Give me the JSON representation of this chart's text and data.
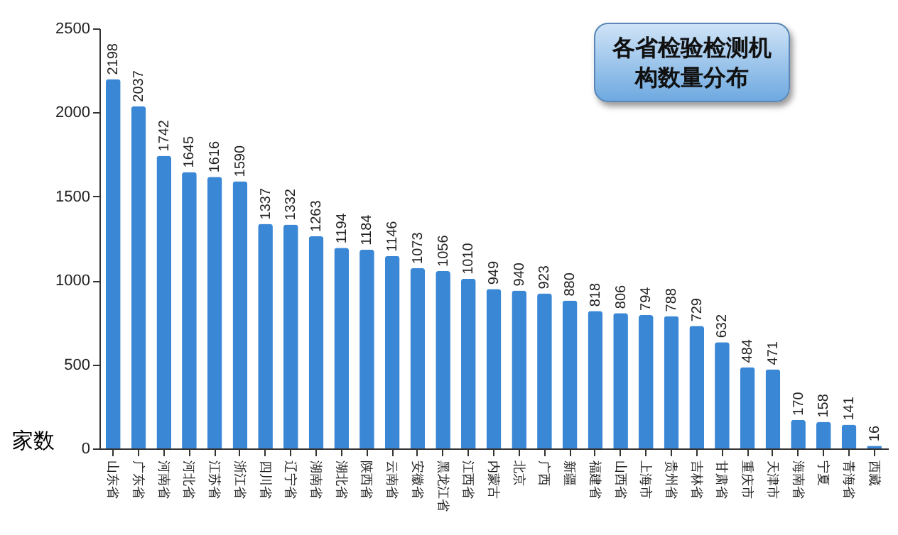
{
  "chart_data": {
    "type": "bar",
    "title": "各省检验检测机构数量分布",
    "ylabel": "家数",
    "categories": [
      "山东省",
      "广东省",
      "河南省",
      "河北省",
      "江苏省",
      "浙江省",
      "四川省",
      "辽宁省",
      "湖南省",
      "湖北省",
      "陕西省",
      "云南省",
      "安徽省",
      "黑龙江省",
      "江西省",
      "内蒙古",
      "北京",
      "广西",
      "新疆",
      "福建省",
      "山西省",
      "上海市",
      "贵州省",
      "吉林省",
      "甘肃省",
      "重庆市",
      "天津市",
      "海南省",
      "宁夏",
      "青海省",
      "西藏"
    ],
    "values": [
      2198,
      2037,
      1742,
      1645,
      1616,
      1590,
      1337,
      1332,
      1263,
      1194,
      1184,
      1146,
      1073,
      1056,
      1010,
      949,
      940,
      923,
      880,
      818,
      806,
      794,
      788,
      729,
      632,
      484,
      471,
      170,
      158,
      141,
      16
    ],
    "color": "#3a87d6",
    "ylim": [
      0,
      2500
    ],
    "yticks": [
      0,
      500,
      1000,
      1500,
      2000,
      2500
    ],
    "data_labels": true,
    "grid": false
  }
}
